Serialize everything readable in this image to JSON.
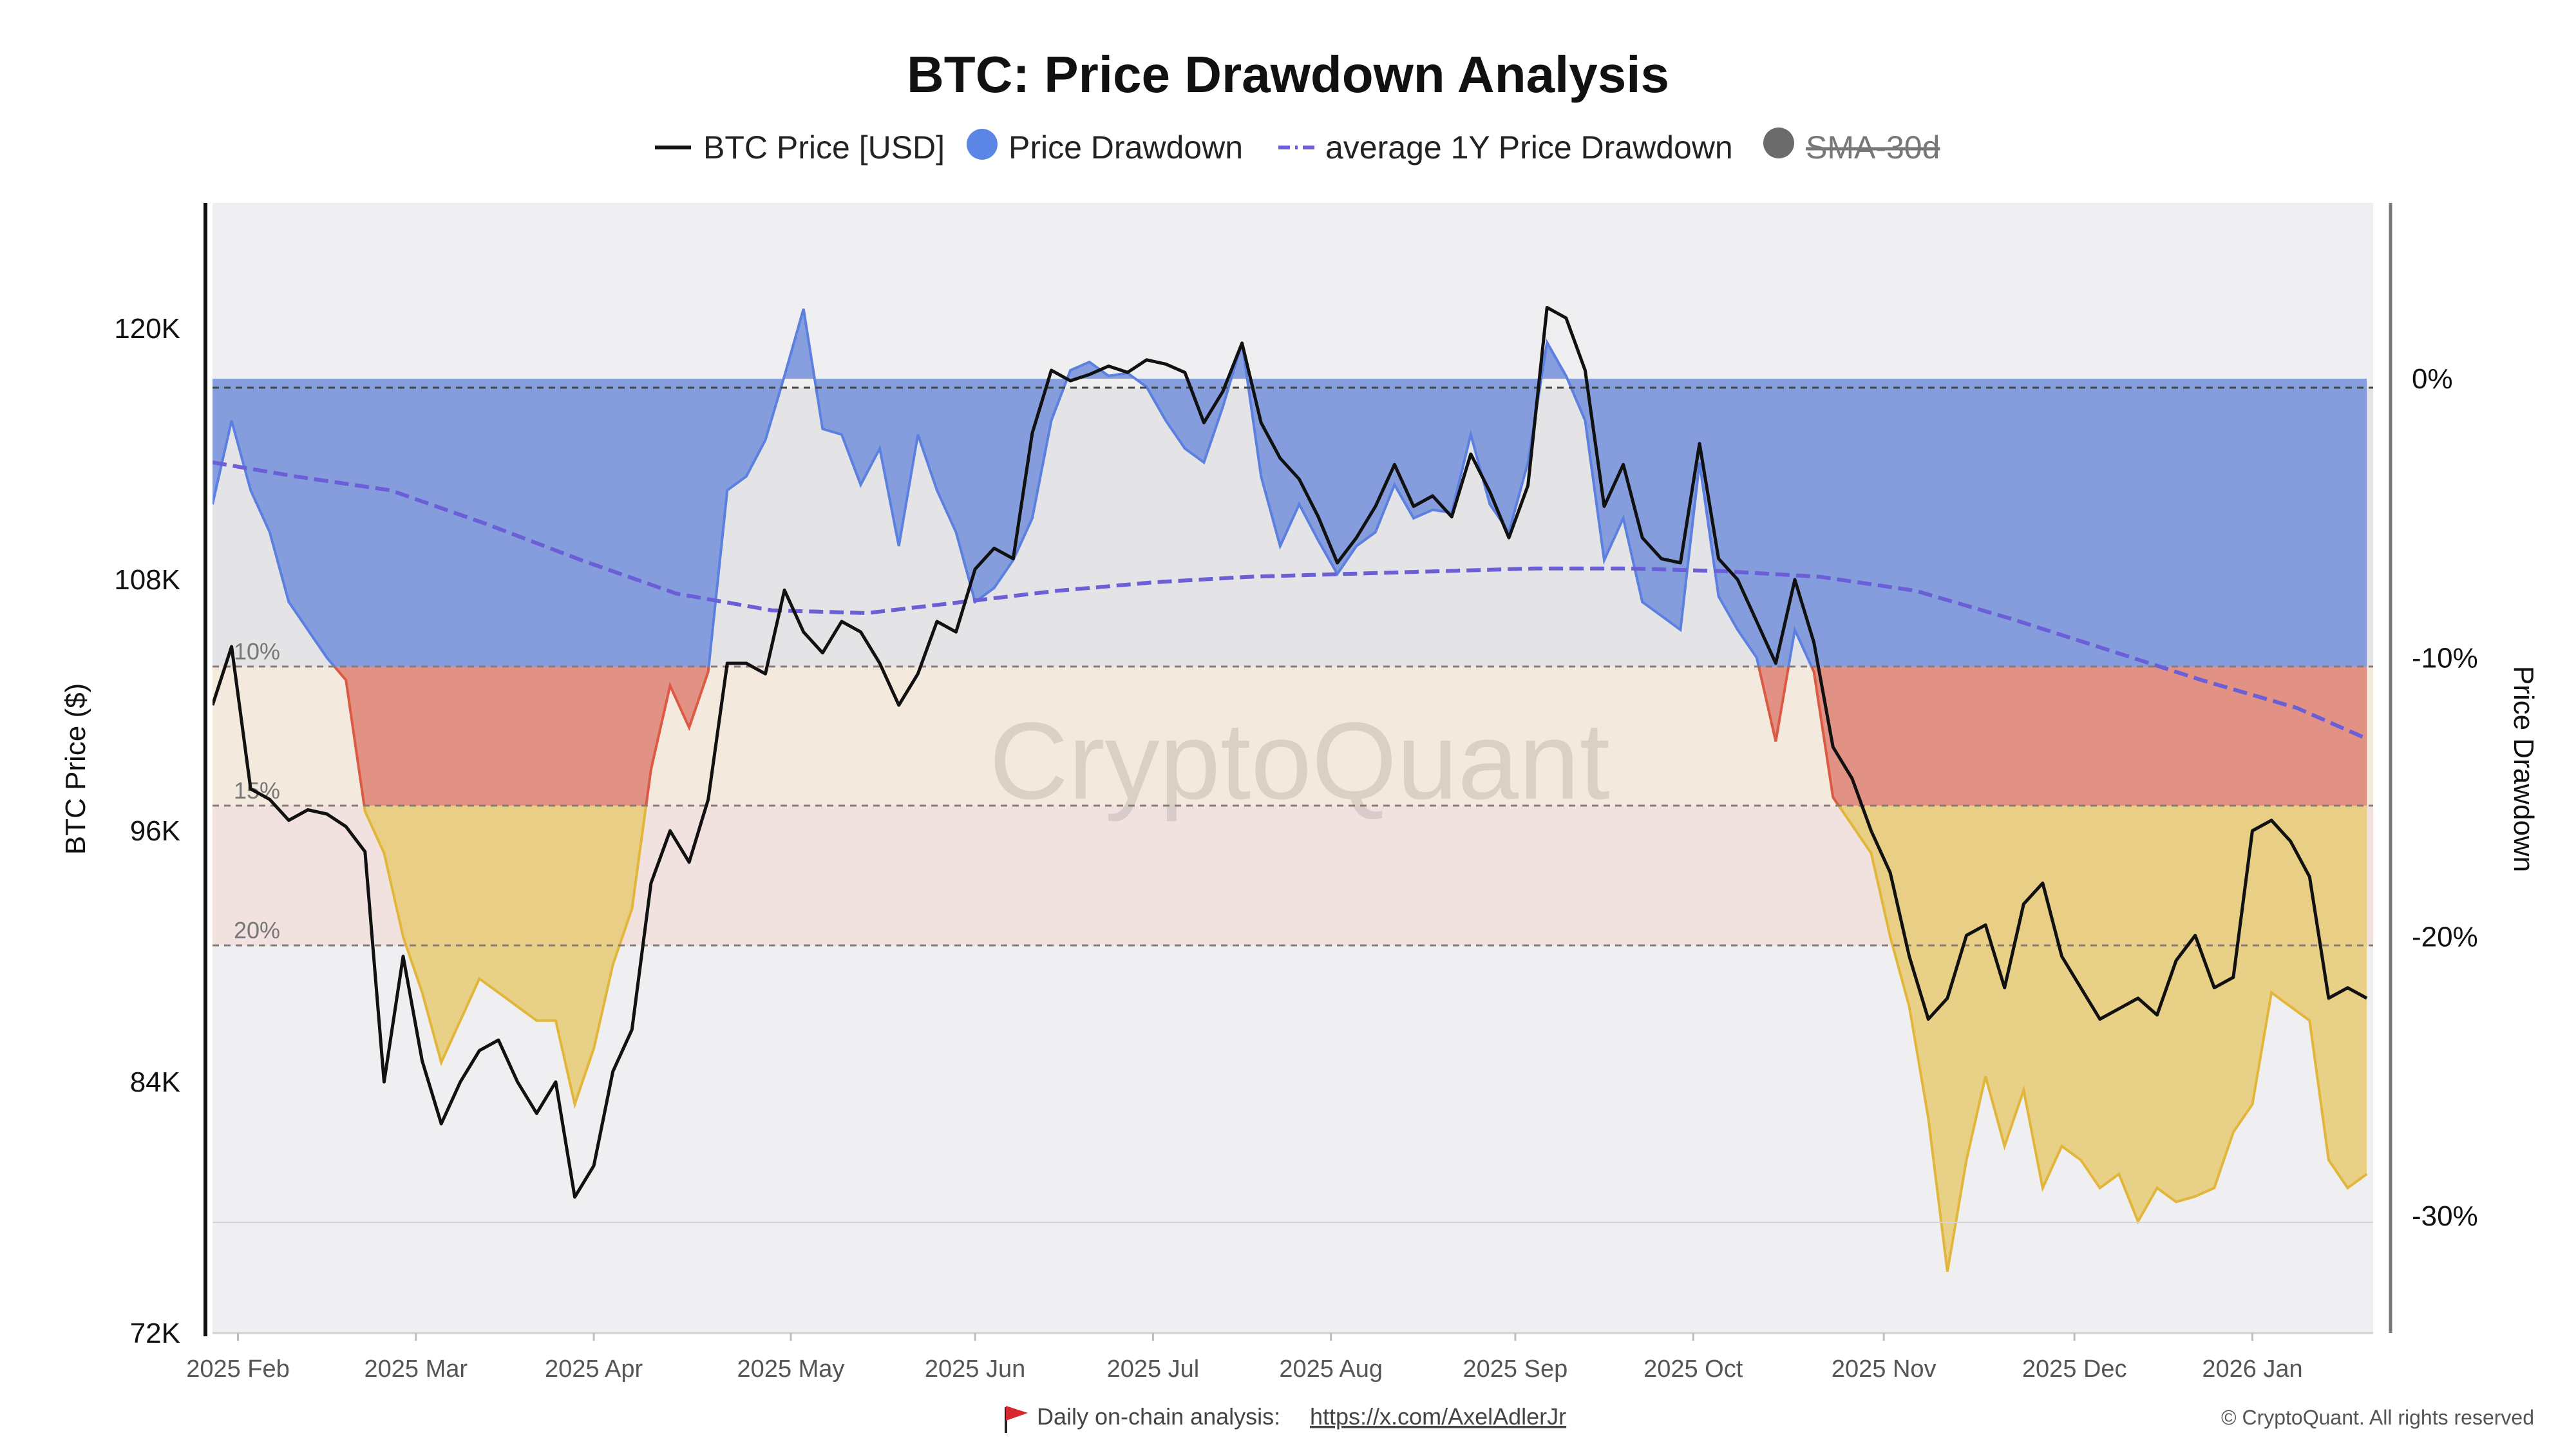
{
  "chart_data": {
    "type": "line",
    "title": "BTC: Price Drawdown Analysis",
    "ylabel_left": "BTC Price ($)",
    "ylabel_right": "Price Drawdown",
    "ylim_left": [
      72000,
      126000
    ],
    "ylim_right": [
      -34.2,
      6.3
    ],
    "ticks_left": [
      "120K",
      "108K",
      "96K",
      "84K",
      "72K"
    ],
    "ticks_left_values": [
      120000,
      108000,
      96000,
      84000,
      72000
    ],
    "ticks_right": [
      "0%",
      "-10%",
      "-20%",
      "-30%"
    ],
    "ticks_right_values": [
      0,
      -10,
      -20,
      -30
    ],
    "x_ticks": [
      "2025 Feb",
      "2025 Mar",
      "2025 Apr",
      "2025 May",
      "2025 Jun",
      "2025 Jul",
      "2025 Aug",
      "2025 Sep",
      "2025 Oct",
      "2025 Nov",
      "2025 Dec",
      "2026 Jan"
    ],
    "x_tick_days": [
      1,
      29,
      57,
      88,
      117,
      145,
      173,
      202,
      230,
      260,
      290,
      318
    ],
    "x_range_days": [
      -3,
      337
    ],
    "band_labels": [
      "10%",
      "15%",
      "20%"
    ],
    "band_levels": [
      -10,
      -15,
      -20
    ],
    "legend": [
      {
        "label": "BTC Price [USD]",
        "symbol": "line",
        "color": "#111111"
      },
      {
        "label": "Price Drawdown",
        "symbol": "dot",
        "color": "#5b86e5"
      },
      {
        "label": "average 1Y Price Drawdown",
        "symbol": "dashed",
        "color": "#6a5fd6"
      },
      {
        "label": "SMA-30d",
        "symbol": "dot",
        "color": "#6b6b6b",
        "disabled": true
      }
    ],
    "colors": {
      "price": "#111111",
      "blue_fill": "#7f99dc",
      "blue_line": "#5b80e0",
      "red_fill": "#e08d7e",
      "red_line": "#dc5a44",
      "yellow_fill": "#e7ce80",
      "yellow_line": "#e2b63a",
      "avg_line": "#6a5fd6",
      "plot_bg": "#efeef1",
      "band_gray": "#e4e3e6",
      "band_beige": "#f3e9dc",
      "band_pink": "#f1e2e0"
    },
    "series": [
      {
        "name": "BTC Price [USD]",
        "x_days": [
          -3,
          0,
          3,
          6,
          9,
          12,
          15,
          18,
          21,
          24,
          27,
          30,
          33,
          36,
          39,
          42,
          45,
          48,
          51,
          54,
          57,
          60,
          63,
          66,
          69,
          72,
          75,
          78,
          81,
          84,
          87,
          90,
          93,
          96,
          99,
          102,
          105,
          108,
          111,
          114,
          117,
          120,
          123,
          126,
          129,
          132,
          135,
          138,
          141,
          144,
          147,
          150,
          153,
          156,
          159,
          162,
          165,
          168,
          171,
          174,
          177,
          180,
          183,
          186,
          189,
          192,
          195,
          198,
          201,
          204,
          207,
          210,
          213,
          216,
          219,
          222,
          225,
          228,
          231,
          234,
          237,
          240,
          243,
          246,
          249,
          252,
          255,
          258,
          261,
          264,
          267,
          270,
          273,
          276,
          279,
          282,
          285,
          288,
          291,
          294,
          297,
          300,
          303,
          306,
          309,
          312,
          315,
          318,
          321,
          324,
          327,
          330,
          333,
          336
        ],
        "values": [
          102000,
          104800,
          98000,
          97500,
          96500,
          97000,
          96800,
          96200,
          95000,
          84000,
          90000,
          85000,
          82000,
          84000,
          85500,
          86000,
          84000,
          82500,
          84000,
          78500,
          80000,
          84500,
          86500,
          93500,
          96000,
          94500,
          97500,
          104000,
          104000,
          103500,
          107500,
          105500,
          104500,
          106000,
          105500,
          104000,
          102000,
          103500,
          106000,
          105500,
          108500,
          109500,
          109000,
          115000,
          118000,
          117500,
          117800,
          118200,
          117900,
          118500,
          118300,
          117900,
          115500,
          117000,
          119300,
          115500,
          113800,
          112800,
          111000,
          108800,
          110000,
          111500,
          113500,
          111500,
          112000,
          111000,
          114000,
          112200,
          110000,
          112500,
          121000,
          120500,
          118000,
          111500,
          113500,
          110000,
          109000,
          108800,
          114500,
          109000,
          108000,
          106000,
          104000,
          108000,
          105000,
          100000,
          98500,
          96000,
          94000,
          90000,
          87000,
          88000,
          91000,
          91500,
          88500,
          92500,
          93500,
          90000,
          88500,
          87000,
          87500,
          88000,
          87200,
          89800,
          91000,
          88500,
          89000,
          96000,
          96500,
          95500,
          93800,
          88000,
          88500,
          88000
        ],
        "color": "#111111"
      },
      {
        "name": "Price Drawdown",
        "x_days": [
          -3,
          0,
          3,
          6,
          9,
          12,
          15,
          18,
          21,
          24,
          27,
          30,
          33,
          36,
          39,
          42,
          45,
          48,
          51,
          54,
          57,
          60,
          63,
          66,
          69,
          72,
          75,
          78,
          81,
          84,
          87,
          90,
          93,
          96,
          99,
          102,
          105,
          108,
          111,
          114,
          117,
          120,
          123,
          126,
          129,
          132,
          135,
          138,
          141,
          144,
          147,
          150,
          153,
          156,
          159,
          162,
          165,
          168,
          171,
          174,
          177,
          180,
          183,
          186,
          189,
          192,
          195,
          198,
          201,
          204,
          207,
          210,
          213,
          216,
          219,
          222,
          225,
          228,
          231,
          234,
          237,
          240,
          243,
          246,
          249,
          252,
          255,
          258,
          261,
          264,
          267,
          270,
          273,
          276,
          279,
          282,
          285,
          288,
          291,
          294,
          297,
          300,
          303,
          306,
          309,
          312,
          315,
          318,
          321,
          324,
          327,
          330,
          333,
          336
        ],
        "values": [
          -4.5,
          -1.5,
          -4,
          -5.5,
          -8,
          -9,
          -10,
          -10.8,
          -15.5,
          -17,
          -20,
          -22,
          -24.5,
          -23,
          -21.5,
          -22,
          -22.5,
          -23,
          -23,
          -26,
          -24,
          -21,
          -19,
          -14,
          -11,
          -12.5,
          -10.5,
          -4,
          -3.5,
          -2.2,
          0.1,
          2.5,
          -1.8,
          -2,
          -3.8,
          -2.5,
          -6,
          -2,
          -4,
          -5.5,
          -8,
          -7.5,
          -6.5,
          -5,
          -1.5,
          0.3,
          0.6,
          0.1,
          0.2,
          -0.3,
          -1.5,
          -2.5,
          -3,
          -1,
          1.3,
          -3.5,
          -6,
          -4.5,
          -5.8,
          -7,
          -6,
          -5.5,
          -3.8,
          -5,
          -4.7,
          -4.8,
          -2,
          -4.5,
          -5.5,
          -3,
          1.3,
          0.1,
          -1.5,
          -6.5,
          -5,
          -8,
          -8.5,
          -9,
          -3,
          -7.8,
          -9,
          -10,
          -13,
          -9,
          -10.5,
          -15,
          -16,
          -17,
          -20,
          -22.5,
          -26.5,
          -32,
          -28,
          -25,
          -27.5,
          -25.5,
          -29,
          -27.5,
          -28,
          -29,
          -28.5,
          -30.2,
          -29,
          -29.5,
          -29.3,
          -29,
          -27,
          -26,
          -22,
          -22.5,
          -23,
          -28,
          -29,
          -28.5
        ],
        "color": "#5b86e5"
      },
      {
        "name": "average 1Y Price Drawdown",
        "x_days": [
          -3,
          10,
          25,
          40,
          55,
          70,
          85,
          100,
          115,
          130,
          145,
          160,
          175,
          190,
          205,
          220,
          235,
          250,
          265,
          280,
          295,
          310,
          325,
          336
        ],
        "values": [
          -3.0,
          -3.5,
          -4.0,
          -5.2,
          -6.5,
          -7.7,
          -8.3,
          -8.4,
          -8.0,
          -7.6,
          -7.3,
          -7.1,
          -7.0,
          -6.9,
          -6.8,
          -6.8,
          -6.9,
          -7.1,
          -7.6,
          -8.6,
          -9.7,
          -10.8,
          -11.8,
          -12.9
        ],
        "color": "#6a5fd6"
      }
    ]
  },
  "footer": {
    "note": "Daily on-chain analysis:",
    "link": "https://x.com/AxelAdlerJr",
    "copyright": "© CryptoQuant. All rights reserved"
  },
  "watermark": "CryptoQuant"
}
